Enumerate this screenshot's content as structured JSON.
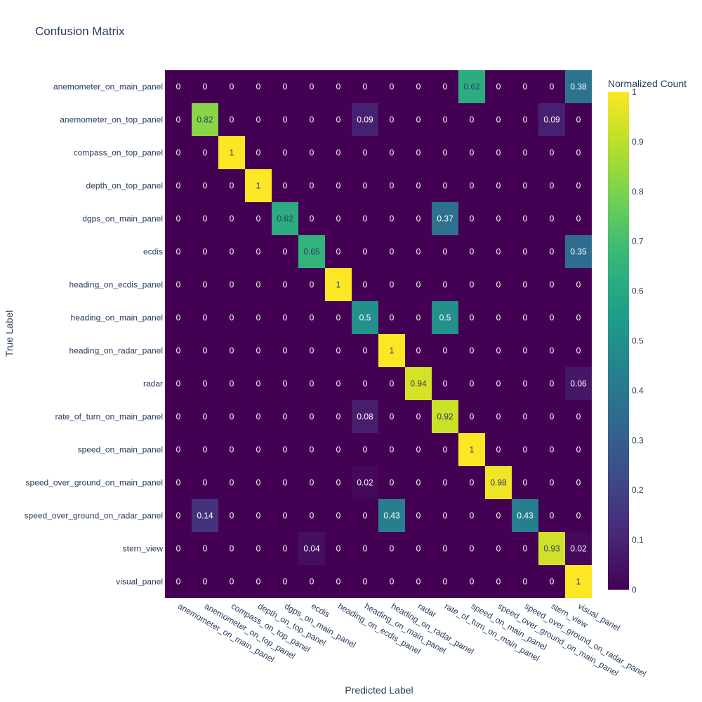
{
  "chart_data": {
    "type": "heatmap",
    "title": "Confusion Matrix",
    "xlabel": "Predicted Label",
    "ylabel": "True Label",
    "colorbar_title": "Normalized Count",
    "colorscale": "viridis",
    "zlim": [
      0,
      1
    ],
    "colorbar_ticks": [
      "0",
      "0.1",
      "0.2",
      "0.3",
      "0.4",
      "0.5",
      "0.6",
      "0.7",
      "0.8",
      "0.9",
      "1"
    ],
    "labels": [
      "anemometer_on_main_panel",
      "anemometer_on_top_panel",
      "compass_on_top_panel",
      "depth_on_top_panel",
      "dgps_on_main_panel",
      "ecdis",
      "heading_on_ecdis_panel",
      "heading_on_main_panel",
      "heading_on_radar_panel",
      "radar",
      "rate_of_turn_on_main_panel",
      "speed_on_main_panel",
      "speed_over_ground_on_main_panel",
      "speed_over_ground_on_radar_panel",
      "stern_view",
      "visual_panel"
    ],
    "matrix": [
      [
        0,
        0,
        0,
        0,
        0,
        0,
        0,
        0,
        0,
        0,
        0,
        0.62,
        0,
        0,
        0,
        0.38
      ],
      [
        0,
        0.82,
        0,
        0,
        0,
        0,
        0,
        0.09,
        0,
        0,
        0,
        0,
        0,
        0,
        0.09,
        0
      ],
      [
        0,
        0,
        1,
        0,
        0,
        0,
        0,
        0,
        0,
        0,
        0,
        0,
        0,
        0,
        0,
        0
      ],
      [
        0,
        0,
        0,
        1,
        0,
        0,
        0,
        0,
        0,
        0,
        0,
        0,
        0,
        0,
        0,
        0
      ],
      [
        0,
        0,
        0,
        0,
        0.62,
        0,
        0,
        0,
        0,
        0,
        0.37,
        0,
        0,
        0,
        0,
        0
      ],
      [
        0,
        0,
        0,
        0,
        0,
        0.65,
        0,
        0,
        0,
        0,
        0,
        0,
        0,
        0,
        0,
        0.35
      ],
      [
        0,
        0,
        0,
        0,
        0,
        0,
        1,
        0,
        0,
        0,
        0,
        0,
        0,
        0,
        0,
        0
      ],
      [
        0,
        0,
        0,
        0,
        0,
        0,
        0,
        0.5,
        0,
        0,
        0.5,
        0,
        0,
        0,
        0,
        0
      ],
      [
        0,
        0,
        0,
        0,
        0,
        0,
        0,
        0,
        1,
        0,
        0,
        0,
        0,
        0,
        0,
        0
      ],
      [
        0,
        0,
        0,
        0,
        0,
        0,
        0,
        0,
        0,
        0.94,
        0,
        0,
        0,
        0,
        0,
        0.06
      ],
      [
        0,
        0,
        0,
        0,
        0,
        0,
        0,
        0.08,
        0,
        0,
        0.92,
        0,
        0,
        0,
        0,
        0
      ],
      [
        0,
        0,
        0,
        0,
        0,
        0,
        0,
        0,
        0,
        0,
        0,
        1,
        0,
        0,
        0,
        0
      ],
      [
        0,
        0,
        0,
        0,
        0,
        0,
        0,
        0.02,
        0,
        0,
        0,
        0,
        0.98,
        0,
        0,
        0
      ],
      [
        0,
        0.14,
        0,
        0,
        0,
        0,
        0,
        0,
        0.43,
        0,
        0,
        0,
        0,
        0.43,
        0,
        0
      ],
      [
        0,
        0,
        0,
        0,
        0,
        0.04,
        0,
        0,
        0,
        0,
        0,
        0,
        0,
        0,
        0.93,
        0.02
      ],
      [
        0,
        0,
        0,
        0,
        0,
        0,
        0,
        0,
        0,
        0,
        0,
        0,
        0,
        0,
        0,
        1
      ]
    ]
  }
}
